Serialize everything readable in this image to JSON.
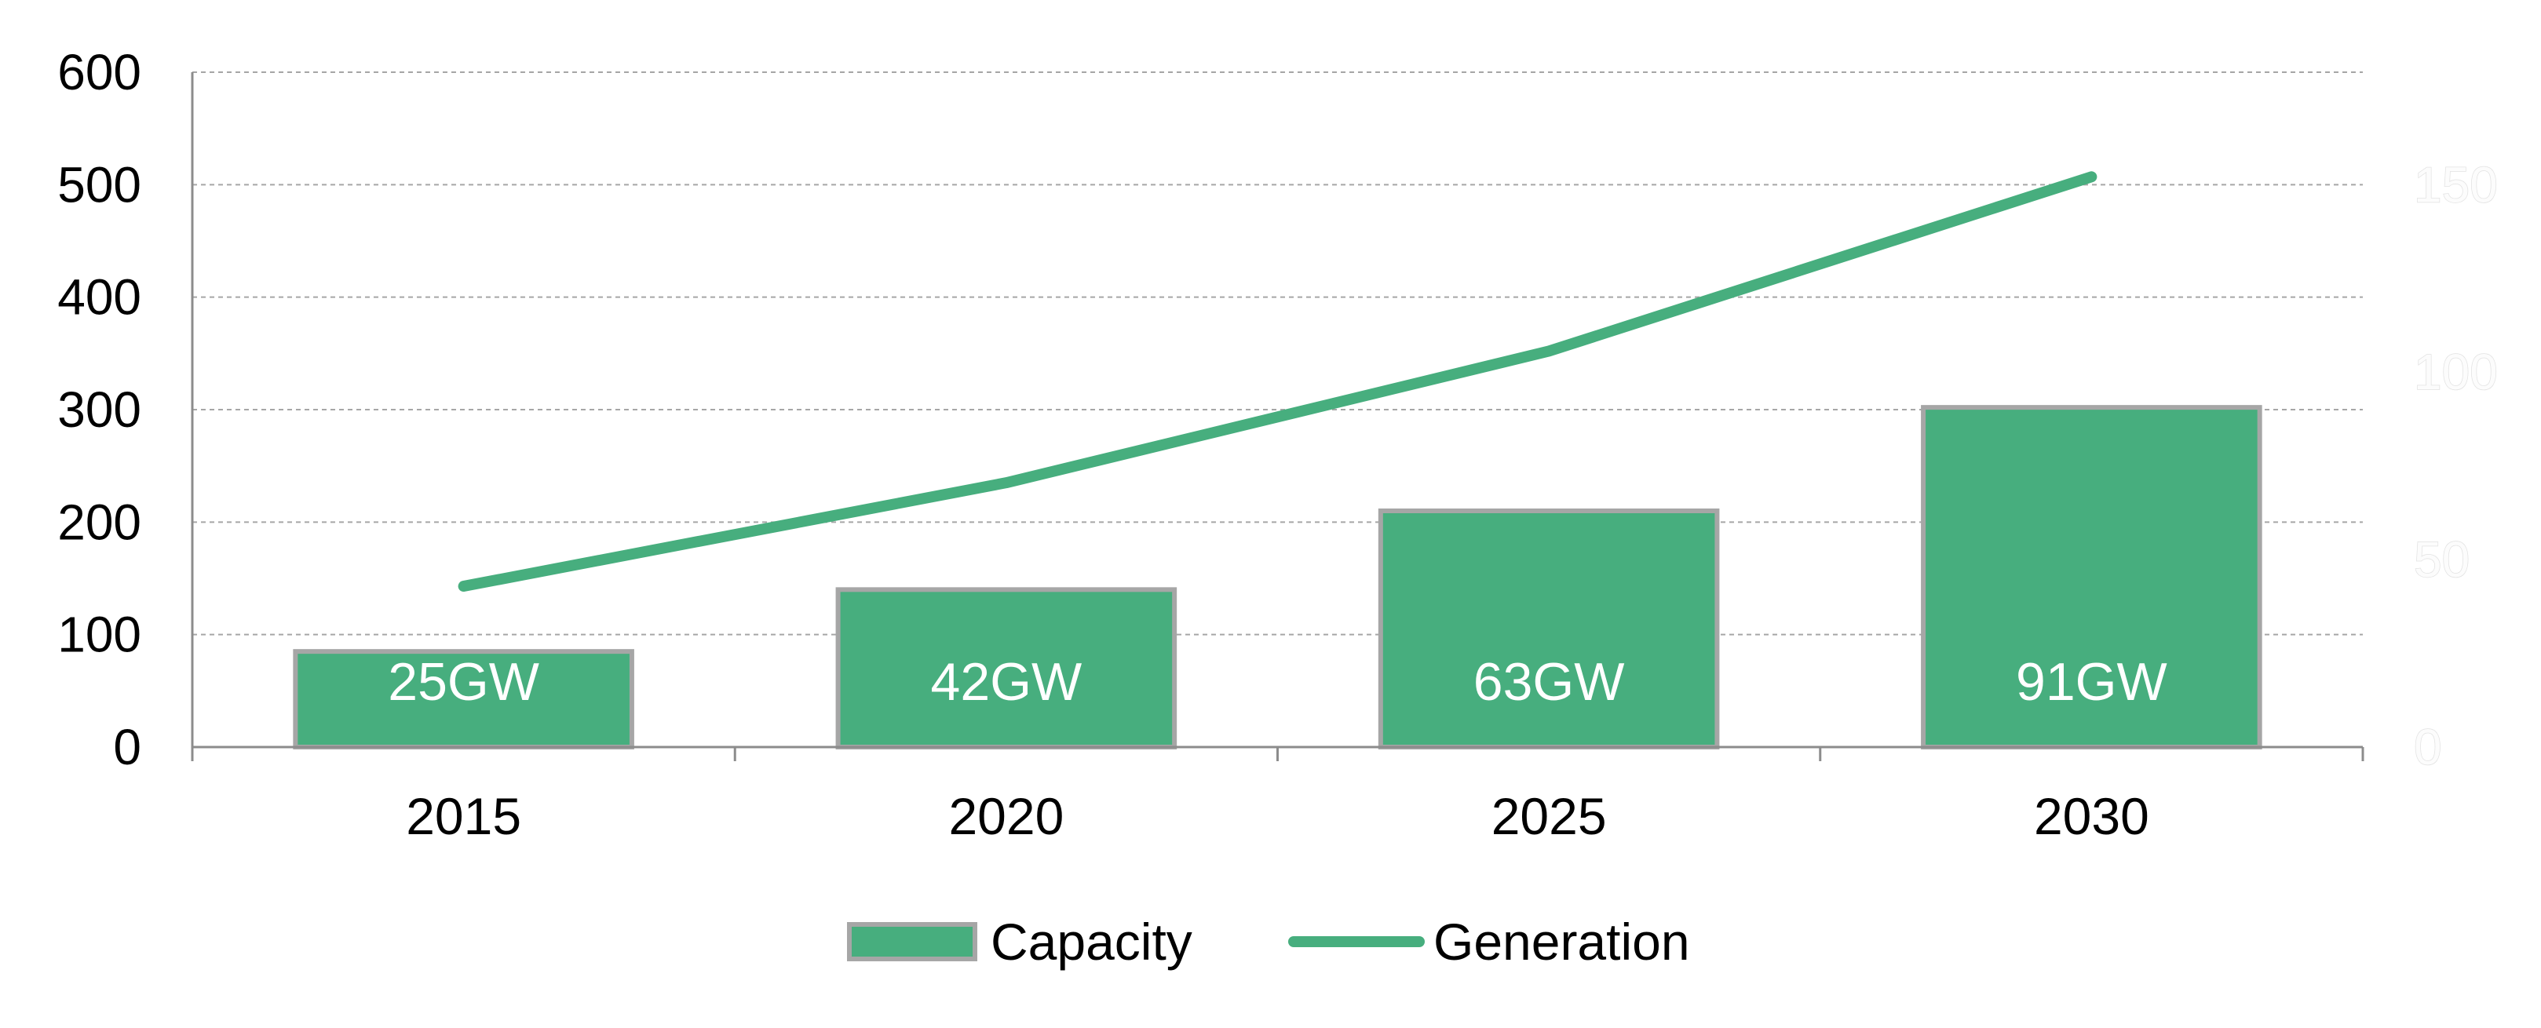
{
  "chart_data": {
    "type": "bar",
    "categories": [
      "2015",
      "2020",
      "2025",
      "2030"
    ],
    "series": [
      {
        "name": "Capacity",
        "type": "bar",
        "axis": "left",
        "values": [
          85,
          140,
          210,
          302
        ],
        "labels": [
          "25GW",
          "42GW",
          "63GW",
          "91GW"
        ],
        "color": "#47ae7e",
        "border": "#a6a6a6"
      },
      {
        "name": "Generation",
        "type": "line",
        "axis": "left",
        "values": [
          143,
          235,
          352,
          507
        ],
        "color": "#47ae7e"
      }
    ],
    "y_left": {
      "min": 0,
      "max": 600,
      "ticks": [
        "0",
        "100",
        "200",
        "300",
        "400",
        "500",
        "600"
      ]
    },
    "y_right": {
      "min": 0,
      "max": 180,
      "ticks": [
        "0",
        "50",
        "100",
        "150"
      ],
      "note": "faint/near-invisible labels"
    },
    "title": "",
    "xlabel": "",
    "ylabel": "",
    "grid": true,
    "legend": {
      "position": "bottom",
      "entries": [
        "Capacity",
        "Generation"
      ]
    }
  }
}
